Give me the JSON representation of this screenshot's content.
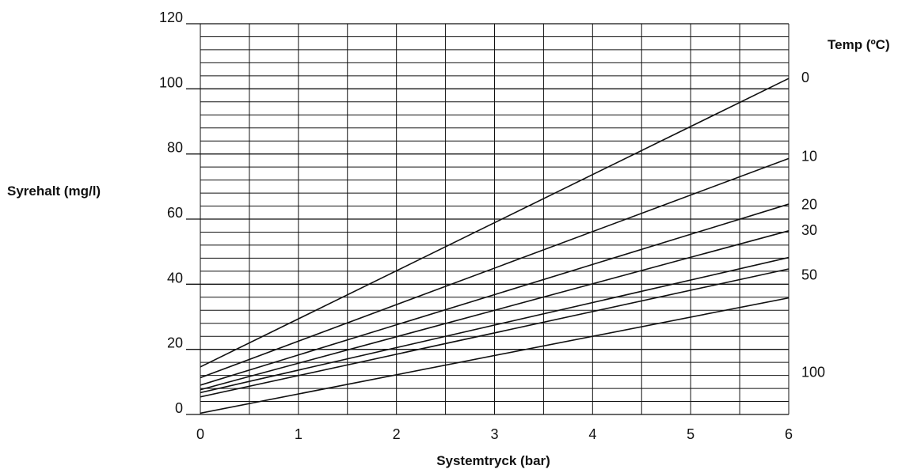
{
  "chart_data": {
    "type": "line",
    "title": "",
    "xlabel": "Systemtryck (bar)",
    "ylabel": "Syrehalt (mg/l)",
    "legend_title": "Temp (ºC)",
    "xlim": [
      0,
      6
    ],
    "ylim": [
      0,
      120
    ],
    "grid": true,
    "x_ticks": [
      "0",
      "1",
      "2",
      "3",
      "4",
      "5",
      "6"
    ],
    "y_ticks": [
      "0",
      "20",
      "40",
      "60",
      "80",
      "100",
      "120"
    ],
    "x": [
      0,
      6
    ],
    "series": [
      {
        "name": "0",
        "values": [
          14.6,
          103.2
        ]
      },
      {
        "name": "10",
        "values": [
          11.3,
          78.6
        ]
      },
      {
        "name": "20",
        "values": [
          9.0,
          64.6
        ]
      },
      {
        "name": "30",
        "values": [
          7.6,
          56.4
        ]
      },
      {
        "name": "",
        "values": [
          6.7,
          48.2
        ]
      },
      {
        "name": "50",
        "values": [
          5.4,
          44.7
        ]
      },
      {
        "name": "100",
        "values": [
          0.4,
          35.8
        ]
      }
    ],
    "right_labels": [
      {
        "text": "0",
        "y": 103.2
      },
      {
        "text": "10",
        "y": 79.1
      },
      {
        "text": "20",
        "y": 64.3
      },
      {
        "text": "30",
        "y": 56.4
      },
      {
        "text": "50",
        "y": 42.6
      },
      {
        "text": "100",
        "y": 12.7
      }
    ]
  }
}
